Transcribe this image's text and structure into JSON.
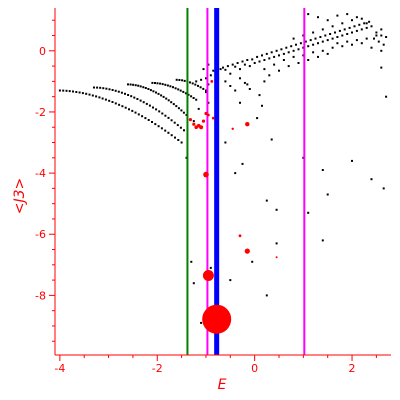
{
  "chart_data": {
    "type": "scatter",
    "title": "",
    "xlabel": "E",
    "ylabel": "<J3>",
    "xlim": [
      -4.1,
      2.8
    ],
    "ylim": [
      -9.95,
      1.4
    ],
    "xticks": [
      -4,
      -2,
      0,
      2
    ],
    "yticks": [
      -8,
      -6,
      -4,
      -2,
      0
    ],
    "grid": false,
    "colors": {
      "axis": "#ff0000",
      "dots": "#000000",
      "highlight": "#ff0000",
      "green": "#008000",
      "blue": "#0000ff",
      "magenta": "#ff00ff"
    },
    "vlines": [
      {
        "x": -1.38,
        "color": "#008000",
        "width": 2
      },
      {
        "x": -0.97,
        "color": "#ff00ff",
        "width": 2
      },
      {
        "x": -0.78,
        "color": "#0000ff",
        "width": 5
      },
      {
        "x": 1.02,
        "color": "#ff00ff",
        "width": 2
      }
    ],
    "branches": [
      {
        "x0": -4.0,
        "x1": -1.5,
        "y0": -1.3,
        "y1": -3.0,
        "n": 38
      },
      {
        "x0": -3.3,
        "x1": -1.45,
        "y0": -1.2,
        "y1": -2.6,
        "n": 30
      },
      {
        "x0": -2.6,
        "x1": -1.4,
        "y0": -1.1,
        "y1": -2.1,
        "n": 24
      },
      {
        "x0": -2.1,
        "x1": -1.2,
        "y0": -1.05,
        "y1": -1.6,
        "n": 18
      },
      {
        "x0": -1.6,
        "x1": -1.0,
        "y0": -0.95,
        "y1": -1.3,
        "n": 12
      }
    ],
    "upper_points": [
      [
        -1.2,
        -1.0
      ],
      [
        -1.1,
        -0.95
      ],
      [
        -1.0,
        -0.9
      ],
      [
        -0.95,
        -1.1
      ],
      [
        -0.9,
        -0.8
      ],
      [
        -0.85,
        -0.65
      ],
      [
        -0.8,
        -0.7
      ],
      [
        -0.75,
        -0.9
      ],
      [
        -0.7,
        -0.6
      ],
      [
        -0.65,
        -0.55
      ],
      [
        -0.6,
        -0.62
      ],
      [
        -0.55,
        -0.5
      ],
      [
        -0.5,
        -0.75
      ],
      [
        -0.45,
        -0.45
      ],
      [
        -0.4,
        -0.52
      ],
      [
        -0.35,
        -0.4
      ],
      [
        -0.3,
        -0.6
      ],
      [
        -0.25,
        -0.35
      ],
      [
        -0.2,
        -0.45
      ],
      [
        -0.15,
        -0.3
      ],
      [
        -0.1,
        -0.5
      ],
      [
        -0.05,
        -0.28
      ],
      [
        0.0,
        -0.4
      ],
      [
        0.05,
        -0.2
      ],
      [
        0.1,
        -0.35
      ],
      [
        0.15,
        -0.15
      ],
      [
        0.2,
        -0.3
      ],
      [
        0.25,
        -0.1
      ],
      [
        0.3,
        -0.25
      ],
      [
        0.35,
        -0.05
      ],
      [
        0.4,
        -0.2
      ],
      [
        0.45,
        0.0
      ],
      [
        0.5,
        -0.15
      ],
      [
        0.55,
        0.05
      ],
      [
        0.6,
        -0.1
      ],
      [
        0.65,
        0.1
      ],
      [
        0.7,
        -0.05
      ],
      [
        0.75,
        0.15
      ],
      [
        0.8,
        0.0
      ],
      [
        0.85,
        0.2
      ],
      [
        0.9,
        0.05
      ],
      [
        0.95,
        0.25
      ],
      [
        1.0,
        0.1
      ],
      [
        1.05,
        0.3
      ],
      [
        1.1,
        0.15
      ],
      [
        1.15,
        0.35
      ],
      [
        1.2,
        0.2
      ],
      [
        1.25,
        0.4
      ],
      [
        1.3,
        0.25
      ],
      [
        1.35,
        0.45
      ],
      [
        1.4,
        0.3
      ],
      [
        1.45,
        0.5
      ],
      [
        1.5,
        0.35
      ],
      [
        1.55,
        0.55
      ],
      [
        1.6,
        0.4
      ],
      [
        1.65,
        0.6
      ],
      [
        1.7,
        0.45
      ],
      [
        1.75,
        0.65
      ],
      [
        1.8,
        0.5
      ],
      [
        1.85,
        0.7
      ],
      [
        1.9,
        0.55
      ],
      [
        1.95,
        0.75
      ],
      [
        2.0,
        0.6
      ],
      [
        2.05,
        0.8
      ],
      [
        2.1,
        0.65
      ],
      [
        2.15,
        0.85
      ],
      [
        2.2,
        0.7
      ],
      [
        2.25,
        0.9
      ],
      [
        2.3,
        0.75
      ],
      [
        2.35,
        0.95
      ],
      [
        2.4,
        0.8
      ],
      [
        2.45,
        0.4
      ],
      [
        2.5,
        0.6
      ],
      [
        2.55,
        0.3
      ],
      [
        2.6,
        0.5
      ],
      [
        2.65,
        0.2
      ],
      [
        2.7,
        0.45
      ],
      [
        0.2,
        -0.6
      ],
      [
        0.4,
        -0.45
      ],
      [
        0.6,
        -0.3
      ],
      [
        0.8,
        -0.2
      ],
      [
        1.0,
        -0.15
      ],
      [
        1.2,
        -0.05
      ],
      [
        1.4,
        0.0
      ],
      [
        1.6,
        0.1
      ],
      [
        1.8,
        0.15
      ],
      [
        2.0,
        0.2
      ],
      [
        2.2,
        0.25
      ],
      [
        2.4,
        0.1
      ],
      [
        2.6,
        0.0
      ],
      [
        0.3,
        -0.8
      ],
      [
        0.5,
        -0.65
      ],
      [
        0.7,
        -0.5
      ],
      [
        0.9,
        -0.4
      ],
      [
        1.1,
        -0.3
      ],
      [
        1.3,
        -0.2
      ],
      [
        1.5,
        -0.1
      ],
      [
        1.7,
        0.25
      ],
      [
        1.9,
        0.3
      ],
      [
        2.1,
        0.35
      ],
      [
        2.3,
        0.4
      ],
      [
        2.5,
        0.5
      ],
      [
        0.8,
        0.4
      ],
      [
        1.0,
        0.5
      ],
      [
        1.2,
        0.6
      ],
      [
        1.4,
        0.7
      ],
      [
        1.6,
        0.8
      ],
      [
        1.8,
        0.9
      ],
      [
        2.0,
        1.0
      ],
      [
        2.2,
        1.05
      ],
      [
        1.1,
        1.2
      ],
      [
        1.3,
        1.1
      ],
      [
        1.5,
        1.0
      ],
      [
        1.7,
        1.15
      ],
      [
        1.9,
        1.2
      ],
      [
        2.1,
        1.1
      ],
      [
        2.3,
        0.9
      ],
      [
        2.6,
        0.7
      ],
      [
        -0.6,
        -1.0
      ],
      [
        -0.5,
        -1.15
      ],
      [
        -0.4,
        -1.3
      ],
      [
        -0.3,
        -0.9
      ],
      [
        -0.2,
        -1.05
      ],
      [
        0.1,
        -1.45
      ],
      [
        0.2,
        -1.0
      ],
      [
        0.15,
        -1.8
      ],
      [
        0.05,
        -2.2
      ],
      [
        -0.3,
        -1.7
      ],
      [
        -0.1,
        -1.25
      ],
      [
        -1.05,
        -0.6
      ],
      [
        -0.95,
        -0.45
      ],
      [
        -1.0,
        -1.35
      ],
      [
        -0.95,
        -1.7
      ],
      [
        -1.15,
        -1.9
      ],
      [
        -1.25,
        -2.3
      ],
      [
        -1.4,
        -3.5
      ]
    ],
    "scattered_points": [
      [
        -1.3,
        -6.9
      ],
      [
        -0.9,
        -7.1
      ],
      [
        -0.4,
        -4.0
      ],
      [
        -0.25,
        -3.7
      ],
      [
        0.25,
        -4.9
      ],
      [
        0.45,
        -5.2
      ],
      [
        1.0,
        -3.5
      ],
      [
        1.1,
        -5.3
      ],
      [
        1.4,
        -3.9
      ],
      [
        1.5,
        -4.7
      ],
      [
        1.4,
        -6.2
      ],
      [
        2.0,
        -3.6
      ],
      [
        2.4,
        -4.2
      ],
      [
        2.65,
        -4.5
      ],
      [
        2.7,
        -1.5
      ],
      [
        2.6,
        -0.55
      ],
      [
        0.25,
        -8.0
      ],
      [
        -0.05,
        -6.9
      ],
      [
        0.45,
        -6.3
      ],
      [
        -1.25,
        -7.6
      ],
      [
        -0.5,
        -7.5
      ],
      [
        -1.1,
        -8.9
      ],
      [
        -0.15,
        -1.1
      ],
      [
        -0.6,
        -3.0
      ],
      [
        0.35,
        -2.9
      ]
    ],
    "red_points": [
      {
        "x": -1.32,
        "y": -2.25,
        "r": 1.6
      },
      {
        "x": -1.25,
        "y": -2.4,
        "r": 1.6
      },
      {
        "x": -1.2,
        "y": -2.5,
        "r": 1.8
      },
      {
        "x": -1.15,
        "y": -2.45,
        "r": 1.8
      },
      {
        "x": -1.1,
        "y": -2.5,
        "r": 2.0
      },
      {
        "x": -1.05,
        "y": -2.3,
        "r": 1.6
      },
      {
        "x": -1.0,
        "y": -2.05,
        "r": 1.6
      },
      {
        "x": -0.95,
        "y": -2.1,
        "r": 1.4
      },
      {
        "x": -0.88,
        "y": -1.0,
        "r": 1.4
      },
      {
        "x": -0.85,
        "y": -2.2,
        "r": 1.4
      },
      {
        "x": -1.0,
        "y": -4.05,
        "r": 2.8
      },
      {
        "x": -0.15,
        "y": -2.4,
        "r": 2.2
      },
      {
        "x": -0.45,
        "y": -2.55,
        "r": 1.2
      },
      {
        "x": -0.3,
        "y": -6.05,
        "r": 1.4
      },
      {
        "x": -0.15,
        "y": -6.55,
        "r": 2.6
      },
      {
        "x": 0.45,
        "y": -6.75,
        "r": 1.0
      },
      {
        "x": -0.95,
        "y": -7.35,
        "r": 5.5
      },
      {
        "x": -0.78,
        "y": -8.78,
        "r": 14.5
      }
    ]
  }
}
